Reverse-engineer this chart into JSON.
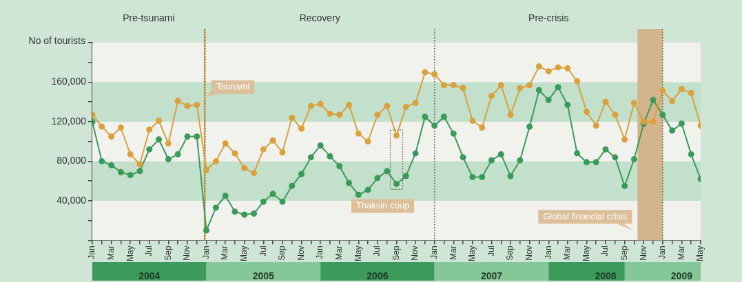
{
  "chart_data": {
    "type": "line",
    "ylabel": "No of tourists",
    "x": [
      "2004-01",
      "2004-02",
      "2004-03",
      "2004-04",
      "2004-05",
      "2004-06",
      "2004-07",
      "2004-08",
      "2004-09",
      "2004-10",
      "2004-11",
      "2004-12",
      "2005-01",
      "2005-02",
      "2005-03",
      "2005-04",
      "2005-05",
      "2005-06",
      "2005-07",
      "2005-08",
      "2005-09",
      "2005-10",
      "2005-11",
      "2005-12",
      "2006-01",
      "2006-02",
      "2006-03",
      "2006-04",
      "2006-05",
      "2006-06",
      "2006-07",
      "2006-08",
      "2006-09",
      "2006-10",
      "2006-11",
      "2006-12",
      "2007-01",
      "2007-02",
      "2007-03",
      "2007-04",
      "2007-05",
      "2007-06",
      "2007-07",
      "2007-08",
      "2007-09",
      "2007-10",
      "2007-11",
      "2007-12",
      "2008-01",
      "2008-02",
      "2008-03",
      "2008-04",
      "2008-05",
      "2008-06",
      "2008-07",
      "2008-08",
      "2008-09",
      "2008-10",
      "2008-11",
      "2008-12",
      "2009-01",
      "2009-02",
      "2009-03",
      "2009-04",
      "2009-05"
    ],
    "series": [
      {
        "color": "#d9a13b",
        "values": [
          127000,
          115000,
          105000,
          114000,
          87000,
          77000,
          112000,
          121000,
          98000,
          141000,
          136000,
          137000,
          71000,
          80000,
          98000,
          88000,
          73000,
          68000,
          92000,
          101000,
          89000,
          124000,
          113000,
          136000,
          138000,
          128000,
          127000,
          137000,
          108000,
          100000,
          127000,
          136000,
          106000,
          135000,
          139000,
          170000,
          168000,
          157000,
          157000,
          154000,
          121000,
          114000,
          146000,
          157000,
          127000,
          154000,
          157000,
          176000,
          171000,
          175000,
          174000,
          161000,
          130000,
          116000,
          140000,
          127000,
          102000,
          139000,
          120000,
          120000,
          151000,
          141000,
          153000,
          149000,
          116000
        ]
      },
      {
        "color": "#3a9a5a",
        "values": [
          120000,
          80000,
          76000,
          69000,
          66000,
          70000,
          92000,
          102000,
          82000,
          87000,
          105000,
          105000,
          10000,
          33000,
          45000,
          29000,
          26000,
          27000,
          39000,
          47000,
          39000,
          55000,
          67000,
          84000,
          96000,
          85000,
          75000,
          58000,
          46000,
          51000,
          63000,
          70000,
          57000,
          65000,
          88000,
          125000,
          116000,
          125000,
          108000,
          84000,
          64000,
          64000,
          81000,
          87000,
          65000,
          81000,
          115000,
          152000,
          142000,
          155000,
          137000,
          88000,
          79000,
          79000,
          92000,
          84000,
          55000,
          82000,
          118000,
          142000,
          127000,
          111000,
          118000,
          87000,
          62000
        ]
      }
    ],
    "xlim": [
      "2004-01",
      "2009-05"
    ],
    "xticks": [
      {
        "value": "2004-01",
        "label": "Jan"
      },
      {
        "value": "2004-02",
        "label": null
      },
      {
        "value": "2004-03",
        "label": "Mar"
      },
      {
        "value": "2004-04",
        "label": null
      },
      {
        "value": "2004-05",
        "label": "May"
      },
      {
        "value": "2004-06",
        "label": null
      },
      {
        "value": "2004-07",
        "label": "Jul"
      },
      {
        "value": "2004-08",
        "label": null
      },
      {
        "value": "2004-09",
        "label": "Sep"
      },
      {
        "value": "2004-10",
        "label": null
      },
      {
        "value": "2004-11",
        "label": "Nov"
      },
      {
        "value": "2004-12",
        "label": null
      },
      {
        "value": "2005-01",
        "label": "Jan"
      },
      {
        "value": "2005-02",
        "label": null
      },
      {
        "value": "2005-03",
        "label": "Mar"
      },
      {
        "value": "2005-04",
        "label": null
      },
      {
        "value": "2005-05",
        "label": "May"
      },
      {
        "value": "2005-06",
        "label": null
      },
      {
        "value": "2005-07",
        "label": "Jul"
      },
      {
        "value": "2005-08",
        "label": null
      },
      {
        "value": "2005-09",
        "label": "Sep"
      },
      {
        "value": "2005-10",
        "label": null
      },
      {
        "value": "2005-11",
        "label": "Nov"
      },
      {
        "value": "2005-12",
        "label": null
      },
      {
        "value": "2006-01",
        "label": "Jan"
      },
      {
        "value": "2006-02",
        "label": null
      },
      {
        "value": "2006-03",
        "label": "Mar"
      },
      {
        "value": "2006-04",
        "label": null
      },
      {
        "value": "2006-05",
        "label": "May"
      },
      {
        "value": "2006-06",
        "label": null
      },
      {
        "value": "2006-07",
        "label": "Jul"
      },
      {
        "value": "2006-08",
        "label": null
      },
      {
        "value": "2006-09",
        "label": "Sep"
      },
      {
        "value": "2006-10",
        "label": null
      },
      {
        "value": "2006-11",
        "label": "Nov"
      },
      {
        "value": "2006-12",
        "label": null
      },
      {
        "value": "2007-01",
        "label": "Jan"
      },
      {
        "value": "2007-02",
        "label": null
      },
      {
        "value": "2007-03",
        "label": "Mar"
      },
      {
        "value": "2007-04",
        "label": null
      },
      {
        "value": "2007-05",
        "label": "May"
      },
      {
        "value": "2007-06",
        "label": null
      },
      {
        "value": "2007-07",
        "label": "Jul"
      },
      {
        "value": "2007-08",
        "label": null
      },
      {
        "value": "2007-09",
        "label": "Sep"
      },
      {
        "value": "2007-10",
        "label": null
      },
      {
        "value": "2007-11",
        "label": "Nov"
      },
      {
        "value": "2007-12",
        "label": null
      },
      {
        "value": "2008-01",
        "label": "Jan"
      },
      {
        "value": "2008-02",
        "label": null
      },
      {
        "value": "2008-03",
        "label": "Mar"
      },
      {
        "value": "2008-04",
        "label": null
      },
      {
        "value": "2008-05",
        "label": "May"
      },
      {
        "value": "2008-06",
        "label": null
      },
      {
        "value": "2008-07",
        "label": "Jul"
      },
      {
        "value": "2008-08",
        "label": null
      },
      {
        "value": "2008-09",
        "label": "Sep"
      },
      {
        "value": "2008-10",
        "label": null
      },
      {
        "value": "2008-11",
        "label": "Nov"
      },
      {
        "value": "2008-12",
        "label": null
      },
      {
        "value": "2009-01",
        "label": "Jan"
      },
      {
        "value": "2009-02",
        "label": null
      },
      {
        "value": "2009-03",
        "label": "Mar"
      },
      {
        "value": "2009-04",
        "label": null
      },
      {
        "value": "2009-05",
        "label": "May"
      }
    ],
    "x2lim": [
      "2004-01",
      "2009-05"
    ],
    "x2ticks": [
      {
        "value": "2004-07",
        "label": "2004"
      },
      {
        "value": "2005-07",
        "label": "2005"
      },
      {
        "value": "2006-07",
        "label": "2006"
      },
      {
        "value": "2007-07",
        "label": "2007"
      },
      {
        "value": "2008-07",
        "label": "2008"
      },
      {
        "value": "2009-03",
        "label": "2009"
      }
    ],
    "ylim": [
      0,
      200000
    ],
    "yticks": [
      {
        "value": 0,
        "label": null
      },
      {
        "value": 20000,
        "label": null
      },
      {
        "value": 40000,
        "label": "40,000"
      },
      {
        "value": 60000,
        "label": null
      },
      {
        "value": 80000,
        "label": "80,000"
      },
      {
        "value": 100000,
        "label": null
      },
      {
        "value": 120000,
        "label": "120,000"
      },
      {
        "value": 140000,
        "label": null
      },
      {
        "value": 160000,
        "label": "160,000"
      },
      {
        "value": 180000,
        "label": null
      },
      {
        "value": 200000,
        "label": null
      }
    ],
    "marker": "circle",
    "line_style": "solid",
    "legend": false,
    "ref_lines": [
      {
        "axis": "x",
        "value": "2004-12-26",
        "label": "Tsunami",
        "color": "#d9a13b",
        "line_style": "solid"
      },
      {
        "axis": "x",
        "value": "2004-12-28",
        "label": null,
        "color": "#555555",
        "line_style": "dotted"
      },
      {
        "axis": "x",
        "value": "2007-01",
        "label": null,
        "color": "#555555",
        "line_style": "dotted"
      },
      {
        "axis": "x",
        "value": "2009-01",
        "label": null,
        "color": "#555555",
        "line_style": "dotted"
      }
    ],
    "bands": [
      {
        "axis": "x",
        "from": "2008-10-12",
        "to": "2009-01",
        "label": "Global financial crisis",
        "color": "#d4b48c"
      }
    ],
    "annotations": [
      "Pre-tsunami",
      "Recovery",
      "Pre-crisis",
      {
        "text": "Thaksin coup",
        "x": "2006-09",
        "y": 57000
      }
    ]
  }
}
